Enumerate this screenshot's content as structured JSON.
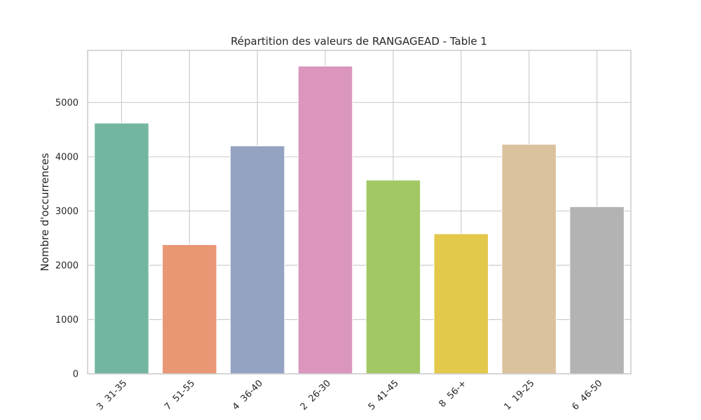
{
  "chart_data": {
    "type": "bar",
    "title": "Répartition des valeurs de RANGAGEAD - Table 1",
    "xlabel": "",
    "ylabel": "Nombre d'occurrences",
    "categories": [
      "3  31-35",
      "7  51-55",
      "4  36-40",
      "2  26-30",
      "5  41-45",
      "8  56-+",
      "1  19-25",
      "6  46-50"
    ],
    "values": [
      4620,
      2380,
      4200,
      5670,
      3570,
      2580,
      4230,
      3080
    ],
    "colors": [
      "#72b6a1",
      "#e99675",
      "#95a3c3",
      "#db96be",
      "#a2c865",
      "#e3c84b",
      "#dbc29e",
      "#b3b3b3"
    ],
    "ylim": [
      0,
      5960
    ],
    "yticks": [
      0,
      1000,
      2000,
      3000,
      4000,
      5000
    ],
    "grid": true
  }
}
